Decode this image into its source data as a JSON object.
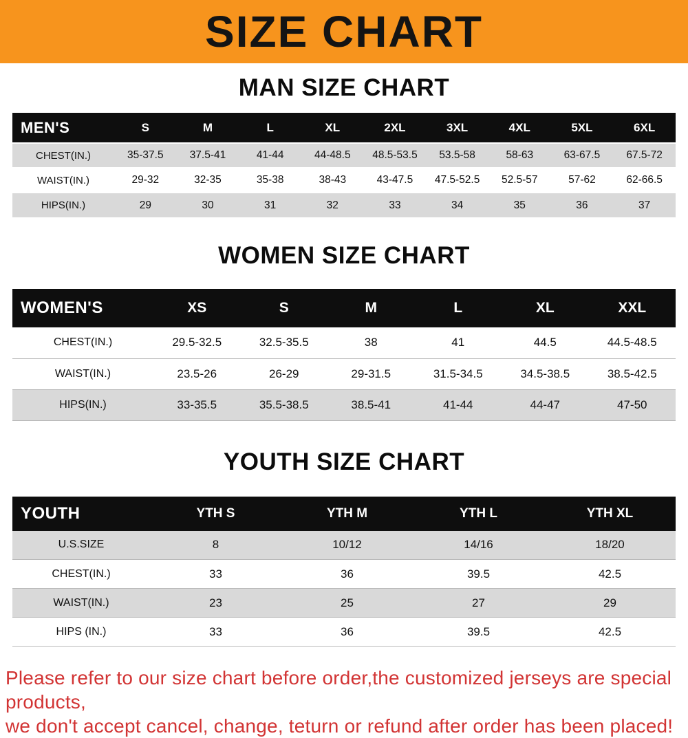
{
  "banner": {
    "title": "SIZE CHART",
    "bg": "#F7941D"
  },
  "sections": [
    {
      "heading": "MAN SIZE CHART",
      "table": {
        "header_label": "MEN'S",
        "columns": [
          "S",
          "M",
          "L",
          "XL",
          "2XL",
          "3XL",
          "4XL",
          "5XL",
          "6XL"
        ],
        "rows": [
          {
            "label": "CHEST(IN.)",
            "values": [
              "35-37.5",
              "37.5-41",
              "41-44",
              "44-48.5",
              "48.5-53.5",
              "53.5-58",
              "58-63",
              "63-67.5",
              "67.5-72"
            ]
          },
          {
            "label": "WAIST(IN.)",
            "values": [
              "29-32",
              "32-35",
              "35-38",
              "38-43",
              "43-47.5",
              "47.5-52.5",
              "52.5-57",
              "57-62",
              "62-66.5"
            ]
          },
          {
            "label": "HIPS(IN.)",
            "values": [
              "29",
              "30",
              "31",
              "32",
              "33",
              "34",
              "35",
              "36",
              "37"
            ]
          }
        ]
      }
    },
    {
      "heading": "WOMEN SIZE CHART",
      "table": {
        "header_label": "WOMEN'S",
        "columns": [
          "XS",
          "S",
          "M",
          "L",
          "XL",
          "XXL"
        ],
        "rows": [
          {
            "label": "CHEST(IN.)",
            "values": [
              "29.5-32.5",
              "32.5-35.5",
              "38",
              "41",
              "44.5",
              "44.5-48.5"
            ]
          },
          {
            "label": "WAIST(IN.)",
            "values": [
              "23.5-26",
              "26-29",
              "29-31.5",
              "31.5-34.5",
              "34.5-38.5",
              "38.5-42.5"
            ]
          },
          {
            "label": "HIPS(IN.)",
            "values": [
              "33-35.5",
              "35.5-38.5",
              "38.5-41",
              "41-44",
              "44-47",
              "47-50"
            ]
          }
        ]
      }
    },
    {
      "heading": "YOUTH SIZE CHART",
      "table": {
        "header_label": "YOUTH",
        "columns": [
          "YTH S",
          "YTH M",
          "YTH L",
          "YTH XL"
        ],
        "rows": [
          {
            "label": "U.S.SIZE",
            "values": [
              "8",
              "10/12",
              "14/16",
              "18/20"
            ]
          },
          {
            "label": "CHEST(IN.)",
            "values": [
              "33",
              "36",
              "39.5",
              "42.5"
            ]
          },
          {
            "label": "WAIST(IN.)",
            "values": [
              "23",
              "25",
              "27",
              "29"
            ]
          },
          {
            "label": "HIPS (IN.)",
            "values": [
              "33",
              "36",
              "39.5",
              "42.5"
            ]
          }
        ]
      }
    }
  ],
  "footer": {
    "line1": "Please refer to our size chart before order,the customized jerseys are special products,",
    "line2": "we don't accept cancel, change, teturn or refund after order has been placed!"
  }
}
